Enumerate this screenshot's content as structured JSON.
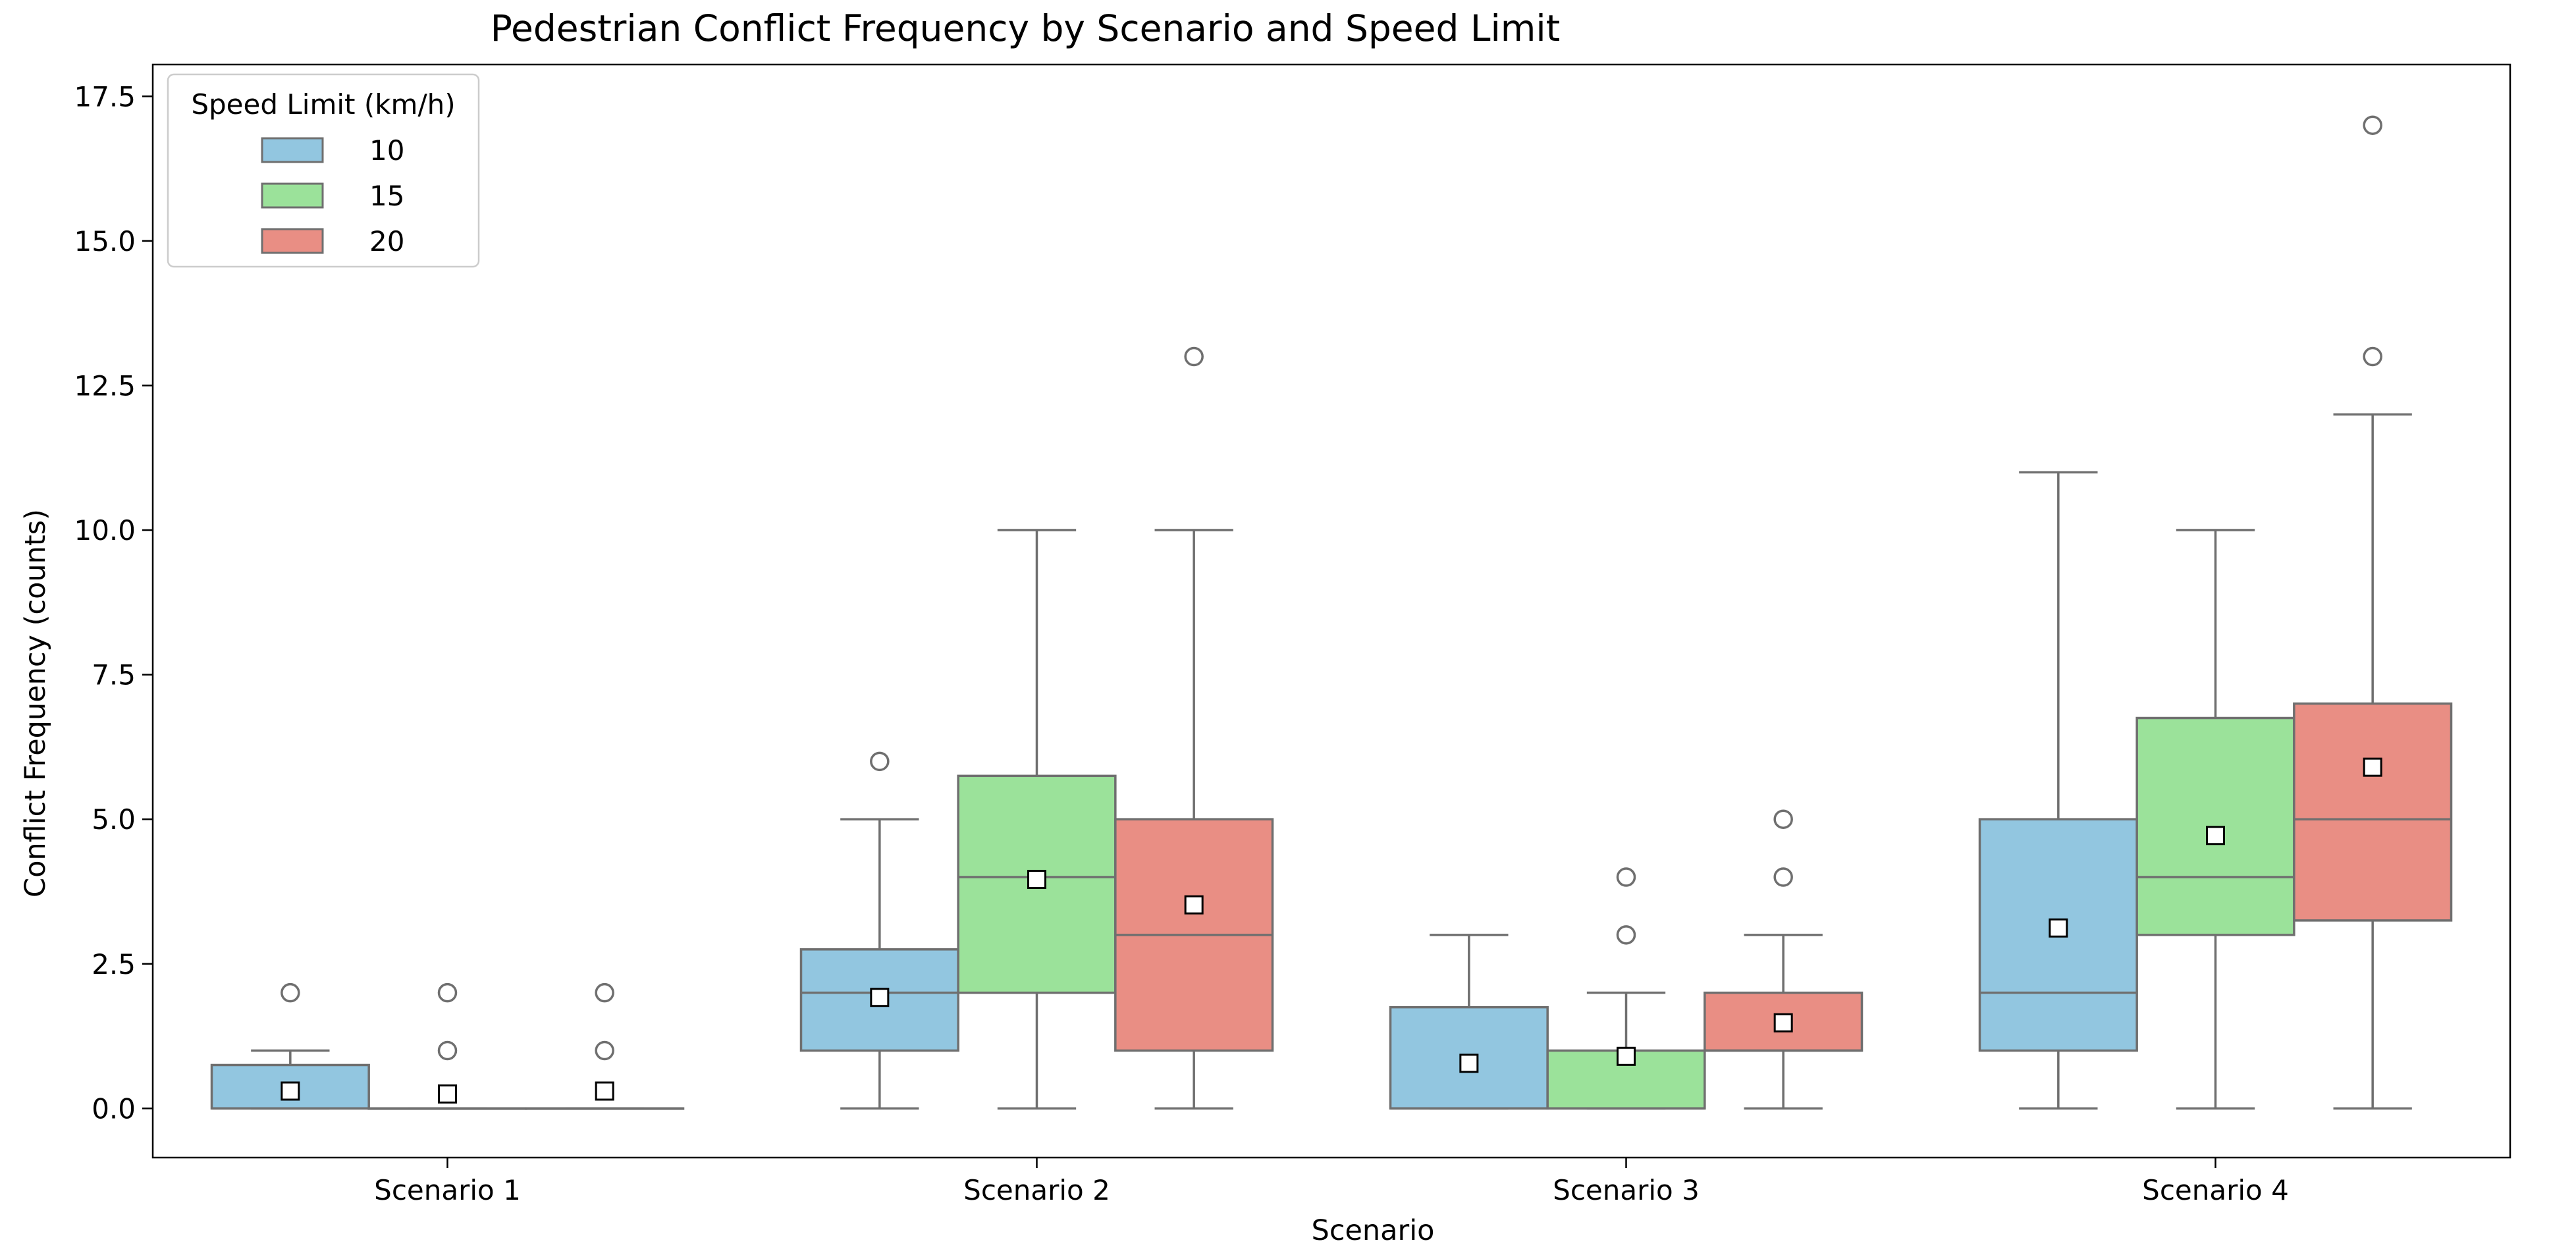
{
  "chart_data": {
    "type": "box",
    "title": "Pedestrian Conflict Frequency by Scenario and Speed Limit",
    "xlabel": "Scenario",
    "ylabel": "Conflict Frequency (counts)",
    "ylim": [
      -0.85,
      18.05
    ],
    "yticks": [
      0.0,
      2.5,
      5.0,
      7.5,
      10.0,
      12.5,
      15.0,
      17.5
    ],
    "ytick_labels": [
      "0.0",
      "2.5",
      "5.0",
      "7.5",
      "10.0",
      "12.5",
      "15.0",
      "17.5"
    ],
    "grid": false,
    "legend": {
      "title": "Speed Limit (km/h)",
      "location": "top-left",
      "entries": [
        {
          "label": "10",
          "color": "#92C6E0"
        },
        {
          "label": "15",
          "color": "#9BE29A"
        },
        {
          "label": "20",
          "color": "#E98E84"
        }
      ]
    },
    "categories": [
      "Scenario 1",
      "Scenario 2",
      "Scenario 3",
      "Scenario 4"
    ],
    "series": [
      {
        "name": "10",
        "color": "#92C6E0",
        "boxes": [
          {
            "q1": 0,
            "median": 0,
            "q3": 0.75,
            "whisker_low": 0,
            "whisker_high": 1,
            "mean": 0.3,
            "outliers": [
              2
            ]
          },
          {
            "q1": 1,
            "median": 2,
            "q3": 2.75,
            "whisker_low": 0,
            "whisker_high": 5,
            "mean": 1.92,
            "outliers": [
              6
            ]
          },
          {
            "q1": 0,
            "median": 0,
            "q3": 1.75,
            "whisker_low": 0,
            "whisker_high": 3,
            "mean": 0.78,
            "outliers": []
          },
          {
            "q1": 1,
            "median": 2,
            "q3": 5,
            "whisker_low": 0,
            "whisker_high": 11,
            "mean": 3.12,
            "outliers": []
          }
        ]
      },
      {
        "name": "15",
        "color": "#9BE29A",
        "boxes": [
          {
            "q1": 0,
            "median": 0,
            "q3": 0,
            "whisker_low": 0,
            "whisker_high": 0,
            "mean": 0.25,
            "outliers": [
              1,
              2
            ]
          },
          {
            "q1": 2,
            "median": 4,
            "q3": 5.75,
            "whisker_low": 0,
            "whisker_high": 10,
            "mean": 3.96,
            "outliers": []
          },
          {
            "q1": 0,
            "median": 0,
            "q3": 1,
            "whisker_low": 0,
            "whisker_high": 2,
            "mean": 0.9,
            "outliers": [
              3,
              4
            ]
          },
          {
            "q1": 3,
            "median": 4,
            "q3": 6.75,
            "whisker_low": 0,
            "whisker_high": 10,
            "mean": 4.72,
            "outliers": []
          }
        ]
      },
      {
        "name": "20",
        "color": "#E98E84",
        "boxes": [
          {
            "q1": 0,
            "median": 0,
            "q3": 0,
            "whisker_low": 0,
            "whisker_high": 0,
            "mean": 0.3,
            "outliers": [
              1,
              2
            ]
          },
          {
            "q1": 1,
            "median": 3,
            "q3": 5,
            "whisker_low": 0,
            "whisker_high": 10,
            "mean": 3.52,
            "outliers": [
              13
            ]
          },
          {
            "q1": 1,
            "median": 1,
            "q3": 2,
            "whisker_low": 0,
            "whisker_high": 3,
            "mean": 1.48,
            "outliers": [
              4,
              5
            ]
          },
          {
            "q1": 3.25,
            "median": 5,
            "q3": 7,
            "whisker_low": 0,
            "whisker_high": 12,
            "mean": 5.9,
            "outliers": [
              13,
              17
            ]
          }
        ]
      }
    ]
  }
}
